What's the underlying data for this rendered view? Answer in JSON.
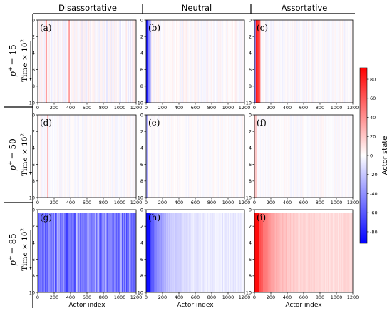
{
  "columns": [
    "Disassortative",
    "Neutral",
    "Assortative"
  ],
  "rows": [
    {
      "p_label": "p",
      "p_sup": "+",
      "p_value": "= 15"
    },
    {
      "p_label": "p",
      "p_sup": "+",
      "p_value": "= 50"
    },
    {
      "p_label": "p",
      "p_sup": "+",
      "p_value": "= 85"
    }
  ],
  "time_label": {
    "prefix": "Time × 10",
    "sup": "2"
  },
  "colorbar": {
    "label": "Actor state",
    "ticks": [
      80,
      60,
      40,
      20,
      0,
      -20,
      -40,
      -60,
      -80
    ],
    "range": [
      -92,
      92
    ],
    "colors": {
      "low": "#0000ff",
      "mid": "#ffffff",
      "high": "#ff0000"
    }
  },
  "chart_data": {
    "type": "heatmap",
    "xlabel": "Actor index",
    "xlim": [
      0,
      1200
    ],
    "xticks": [
      0,
      200,
      400,
      600,
      800,
      1000,
      1200
    ],
    "ylim": [
      0,
      10
    ],
    "yticks": [
      0,
      2,
      4,
      6,
      8,
      10
    ],
    "panels": [
      {
        "label": "(a)",
        "row": 0,
        "col": 0
      },
      {
        "label": "(b)",
        "row": 0,
        "col": 1
      },
      {
        "label": "(c)",
        "row": 0,
        "col": 2
      },
      {
        "label": "(d)",
        "row": 1,
        "col": 0
      },
      {
        "label": "(e)",
        "row": 1,
        "col": 1
      },
      {
        "label": "(f)",
        "row": 1,
        "col": 2
      },
      {
        "label": "(g)",
        "row": 2,
        "col": 0
      },
      {
        "label": "(h)",
        "row": 2,
        "col": 1
      },
      {
        "label": "(i)",
        "row": 2,
        "col": 2
      }
    ]
  }
}
